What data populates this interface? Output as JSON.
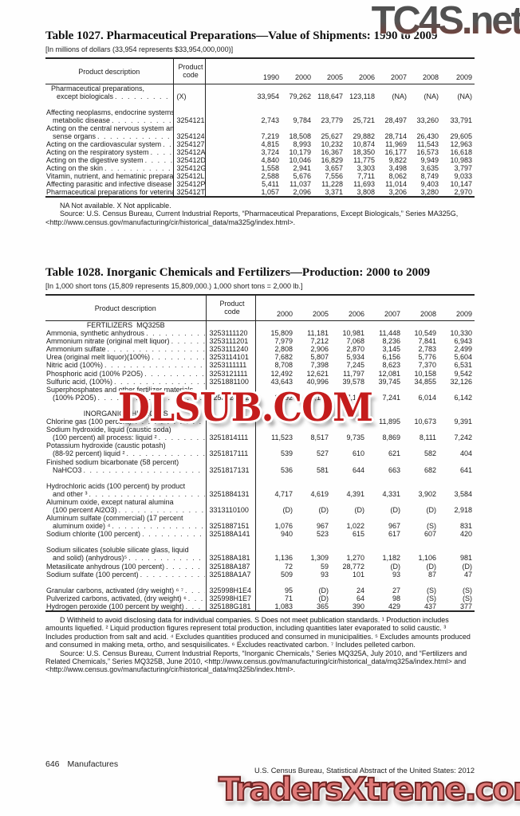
{
  "watermarks": {
    "top": "TC4S.net",
    "middle": "DLSUB.COM",
    "bottom": "TradersXtreme.com"
  },
  "table1": {
    "title": "Table 1027. Pharmaceutical Preparations—Value of Shipments: 1990 to 2009",
    "unit_note": "[In millions of dollars (33,954 represents $33,954,000,000)]",
    "columns": {
      "description": "Product description",
      "code_line1": "Product",
      "code_line2": "code"
    },
    "years": [
      "1990",
      "2000",
      "2005",
      "2006",
      "2007",
      "2008",
      "2009"
    ],
    "rows": [
      {
        "d": [
          "Pharmaceutical preparations,",
          "except biologicals"
        ],
        "ind": true,
        "code": "(X)",
        "v": [
          "33,954",
          "79,262",
          "118,647",
          "123,118",
          "(NA)",
          "(NA)",
          "(NA)"
        ]
      },
      {
        "blank": true
      },
      {
        "d": [
          "Affecting neoplasms, endocrine systems, and",
          "metabolic disease"
        ],
        "code": "3254121",
        "v": [
          "2,743",
          "9,784",
          "23,779",
          "25,721",
          "28,497",
          "33,260",
          "33,791"
        ]
      },
      {
        "d": [
          "Acting on the central nervous system and",
          "sense organs"
        ],
        "code": "3254124",
        "v": [
          "7,219",
          "18,508",
          "25,627",
          "29,882",
          "28,714",
          "26,430",
          "29,605"
        ]
      },
      {
        "d": [
          "Acting on the cardiovascular system"
        ],
        "code": "3254127",
        "v": [
          "4,815",
          "8,993",
          "10,232",
          "10,874",
          "11,969",
          "11,543",
          "12,963"
        ]
      },
      {
        "d": [
          "Acting on the respiratory system"
        ],
        "code": "325412A",
        "v": [
          "3,724",
          "10,179",
          "16,367",
          "18,350",
          "16,177",
          "16,573",
          "16,618"
        ]
      },
      {
        "d": [
          "Acting on the digestive system"
        ],
        "code": "325412D",
        "v": [
          "4,840",
          "10,046",
          "16,829",
          "11,775",
          "9,822",
          "9,949",
          "10,983"
        ]
      },
      {
        "d": [
          "Acting on the skin"
        ],
        "code": "325412G",
        "v": [
          "1,558",
          "2,941",
          "3,657",
          "3,303",
          "3,498",
          "3,635",
          "3,797"
        ]
      },
      {
        "d": [
          "Vitamin, nutrient, and hematinic preparations"
        ],
        "code": "325412L",
        "v": [
          "2,588",
          "5,676",
          "7,556",
          "7,711",
          "8,062",
          "8,749",
          "9,033"
        ]
      },
      {
        "d": [
          "Affecting parasitic and infective disease"
        ],
        "code": "325412P",
        "v": [
          "5,411",
          "11,037",
          "11,228",
          "11,693",
          "11,014",
          "9,403",
          "10,147"
        ]
      },
      {
        "d": [
          "Pharmaceutical preparations for veterinary use"
        ],
        "code": "325412T",
        "v": [
          "1,057",
          "2,096",
          "3,371",
          "3,808",
          "3,206",
          "3,280",
          "2,970"
        ]
      }
    ],
    "na_note": "NA Not available. X Not applicable.",
    "source": "Source: U.S. Census Bureau, Current Industrial Reports, “Pharmaceutical Preparations, Except Biologicals,” Series MA325G, <http://www.census.gov/manufacturing/cir/historical_data/ma325g/index.html>."
  },
  "table2": {
    "title": "Table 1028. Inorganic Chemicals and Fertilizers—Production: 2000 to 2009",
    "unit_note": "[In 1,000 short tons (15,809 represents 15,809,000.) 1,000 short tons = 2,000 lb.]",
    "columns": {
      "description": "Product description",
      "code_line1": "Product",
      "code_line2": "code"
    },
    "years": [
      "2000",
      "2005",
      "2006",
      "2007",
      "2008",
      "2009"
    ],
    "rows": [
      {
        "sec": "FERTILIZERS  MQ325B"
      },
      {
        "d": [
          "Ammonia, synthetic anhydrous"
        ],
        "code": "3253111120",
        "v": [
          "15,809",
          "11,181",
          "10,981",
          "11,448",
          "10,549",
          "10,330"
        ]
      },
      {
        "d": [
          "Ammonium nitrate (original melt liquor)"
        ],
        "code": "3253111201",
        "v": [
          "7,979",
          "7,212",
          "7,068",
          "8,236",
          "7,841",
          "6,943"
        ]
      },
      {
        "d": [
          "Ammonium sulfate"
        ],
        "code": "3253111240",
        "v": [
          "2,808",
          "2,906",
          "2,870",
          "3,145",
          "2,783",
          "2,499"
        ]
      },
      {
        "d": [
          "Urea (original melt liquor)(100%)"
        ],
        "code": "3253114101",
        "v": [
          "7,682",
          "5,807",
          "5,934",
          "6,156",
          "5,776",
          "5,604"
        ]
      },
      {
        "d": [
          "Nitric acid (100%)"
        ],
        "code": "3253111111",
        "v": [
          "8,708",
          "7,398",
          "7,245",
          "8,623",
          "7,370",
          "6,531"
        ]
      },
      {
        "d": [
          "Phosphoric acid (100% P2O5)"
        ],
        "code": "3253121111",
        "v": [
          "12,492",
          "12,621",
          "11,797",
          "12,081",
          "10,158",
          "9,542"
        ]
      },
      {
        "d": [
          "Sulfuric acid, (100%)"
        ],
        "code": "3251881100",
        "v": [
          "43,643",
          "40,996",
          "39,578",
          "39,745",
          "34,855",
          "32,126"
        ]
      },
      {
        "d": [
          "Superphosphates and other fertilizer materials",
          "(100% P2O5)"
        ],
        "code": "3253124102",
        "v": [
          "8,892",
          "8,141",
          "7,184",
          "7,241",
          "6,014",
          "6,142"
        ]
      },
      {
        "blank": true
      },
      {
        "sec": "INORGANIC CHEMICALS"
      },
      {
        "d": [
          "Chlorine gas (100 percent)¹"
        ],
        "code": "",
        "v": [
          "",
          "",
          "",
          "11,895",
          "10,673",
          "9,391"
        ]
      },
      {
        "d": [
          "Sodium hydroxide, liquid (caustic soda)",
          "(100 percent) all process: liquid ²"
        ],
        "code": "3251814111",
        "v": [
          "11,523",
          "8,517",
          "9,735",
          "8,869",
          "8,111",
          "7,242"
        ]
      },
      {
        "d": [
          "Potassium hydroxide (caustic potash)",
          "(88-92 percent) liquid ²"
        ],
        "code": "3251817111",
        "v": [
          "539",
          "527",
          "610",
          "621",
          "582",
          "404"
        ]
      },
      {
        "d": [
          "Finished sodium bicarbonate (58 percent)",
          "NaHCO3"
        ],
        "code": "3251817131",
        "v": [
          "536",
          "581",
          "644",
          "663",
          "682",
          "641"
        ]
      },
      {
        "blank": true
      },
      {
        "d": [
          "Hydrochloric acids (100 percent) by product",
          "and other ³"
        ],
        "code": "3251884131",
        "v": [
          "4,717",
          "4,619",
          "4,391",
          "4,331",
          "3,902",
          "3,584"
        ]
      },
      {
        "d": [
          "Aluminum oxide, except natural alumina",
          "(100 percent Al2O3)"
        ],
        "code": "3313110100",
        "v": [
          "(D)",
          "(D)",
          "(D)",
          "(D)",
          "(D)",
          "2,918"
        ]
      },
      {
        "d": [
          "Aluminum sulfate (commercial) (17 percent",
          "aluminum oxide) ⁴"
        ],
        "code": "3251887151",
        "v": [
          "1,076",
          "967",
          "1,022",
          "967",
          "(S)",
          "831"
        ]
      },
      {
        "d": [
          "Sodium chlorite (100 percent)"
        ],
        "code": "325188A141",
        "v": [
          "940",
          "523",
          "615",
          "617",
          "607",
          "420"
        ]
      },
      {
        "blank": true
      },
      {
        "d": [
          "Sodium silicates (soluble silicate glass, liquid",
          "and solid) (anhydrous)⁵"
        ],
        "code": "325188A181",
        "v": [
          "1,136",
          "1,309",
          "1,270",
          "1,182",
          "1,106",
          "981"
        ]
      },
      {
        "d": [
          "Metasilicate anhydrous (100 percent)"
        ],
        "code": "325188A187",
        "v": [
          "72",
          "59",
          "28,772",
          "(D)",
          "(D)",
          "(D)"
        ]
      },
      {
        "d": [
          "Sodium sulfate (100 percent)"
        ],
        "code": "325188A1A7",
        "v": [
          "509",
          "93",
          "101",
          "93",
          "87",
          "47"
        ]
      },
      {
        "blank": true
      },
      {
        "d": [
          "Granular carbons, activated (dry weight) ⁶ ⁷"
        ],
        "code": "325998H1E4",
        "v": [
          "95",
          "(D)",
          "24",
          "27",
          "(S)",
          "(S)"
        ]
      },
      {
        "d": [
          "Pulverized carbons, activated, (dry weight) ⁶"
        ],
        "code": "325998H1E7",
        "v": [
          "71",
          "(D)",
          "64",
          "98",
          "(S)",
          "(S)"
        ]
      },
      {
        "d": [
          "Hydrogen peroxide (100 percent by weight)"
        ],
        "code": "325188G181",
        "v": [
          "1,083",
          "365",
          "390",
          "429",
          "437",
          "377"
        ]
      }
    ],
    "footnotes": "D Withheld to avoid disclosing data for individual companies. S Does not meet publication standards. ¹ Production includes amounts liquefied. ² Liquid production figures represent total production, including quantities later evaporated to solid caustic. ³ Includes production from salt and acid. ⁴ Excludes quantities produced and consumed in municipalities. ⁵ Excludes amounts produced and consumed in making meta, ortho, and sesquisilicates. ⁶ Excludes reactivated carbon. ⁷ Includes pelleted carbon.",
    "source": "Source: U.S. Census Bureau, Current Industrial Reports, “Inorganic Chemicals,” Series MQ325A, July 2010, and “Fertilizers and Related Chemicals,” Series MQ325B, June 2010, <http://www.census.gov/manufacturing/cir/historical_data/mq325a/index.html> and <http://www.census.gov/manufacturing/cir/historical_data/mq325b/index.html>."
  },
  "footer": {
    "page_number": "646",
    "section": "Manufactures",
    "right": "U.S. Census Bureau, Statistical Abstract of the United States: 2012"
  }
}
